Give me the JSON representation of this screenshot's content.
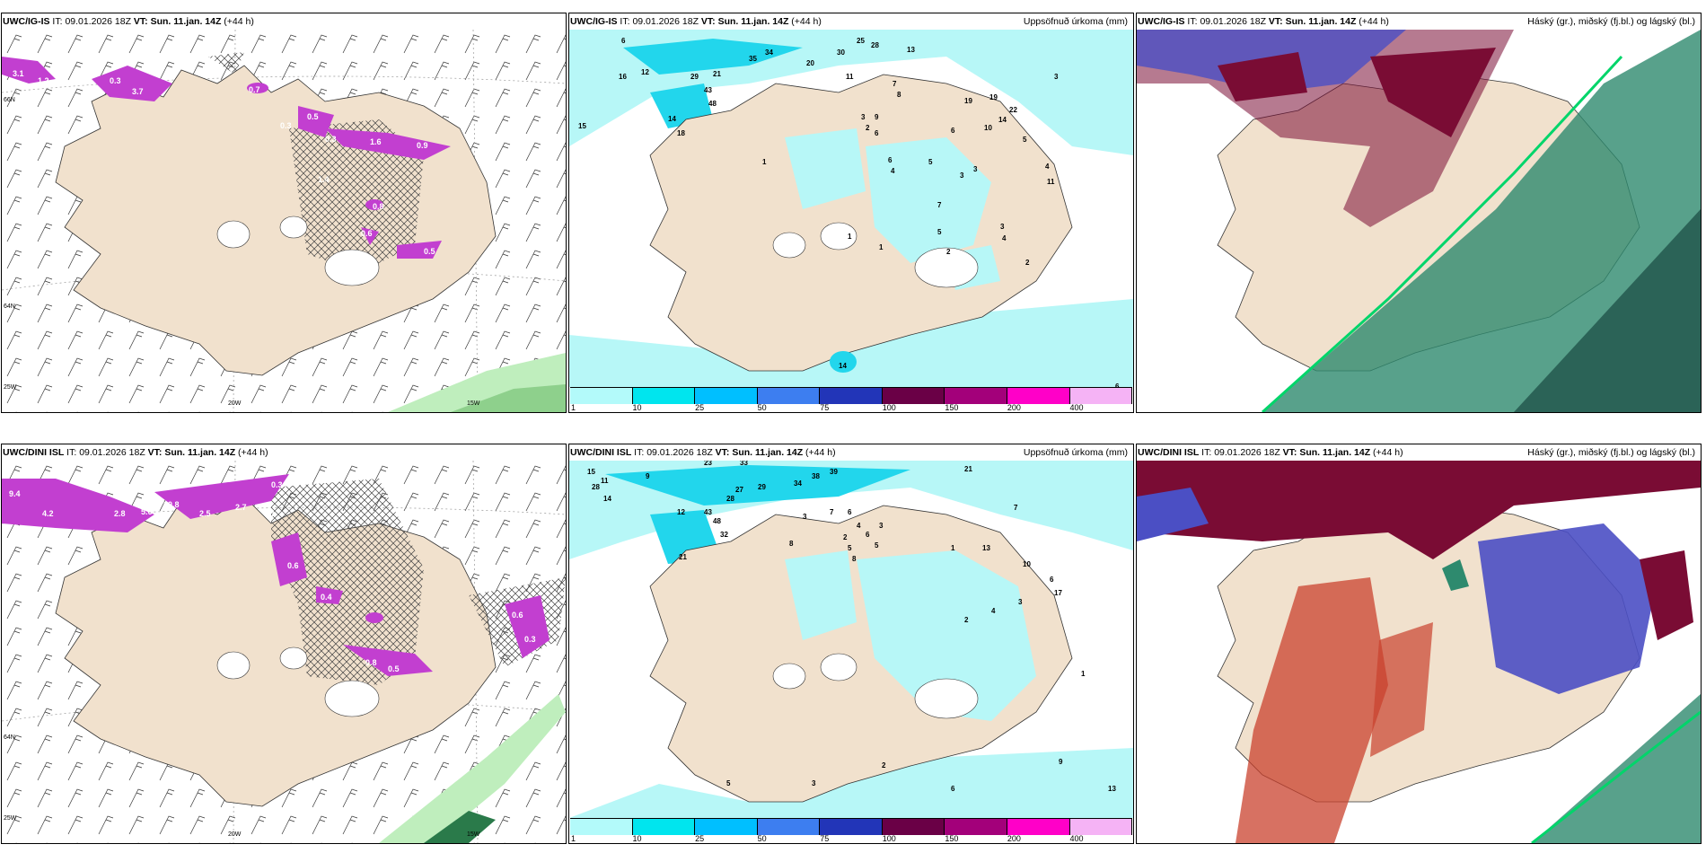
{
  "panels": [
    {
      "model": "UWC/IG-IS",
      "it_label": "IT:",
      "it": "09.01.2026 18Z",
      "vt_label": "VT:",
      "vt": "Sun. 11.jan. 14Z",
      "lead": "(+44 h)",
      "title": ""
    },
    {
      "model": "UWC/IG-IS",
      "it_label": "IT:",
      "it": "09.01.2026 18Z",
      "vt_label": "VT:",
      "vt": "Sun. 11.jan. 14Z",
      "lead": "(+44 h)",
      "title": "Uppsöfnuð úrkoma (mm)"
    },
    {
      "model": "UWC/IG-IS",
      "it_label": "IT:",
      "it": "09.01.2026 18Z",
      "vt_label": "VT:",
      "vt": "Sun. 11.jan. 14Z",
      "lead": "(+44 h)",
      "title": "Háský (gr.), miðský (fj.bl.) og lágský (bl.)"
    },
    {
      "model": "UWC/DINI ISL",
      "it_label": "IT:",
      "it": "09.01.2026 18Z",
      "vt_label": "VT:",
      "vt": "Sun. 11.jan. 14Z",
      "lead": "(+44 h)",
      "title": ""
    },
    {
      "model": "UWC/DINI ISL",
      "it_label": "IT:",
      "it": "09.01.2026 18Z",
      "vt_label": "VT:",
      "vt": "Sun. 11.jan. 14Z",
      "lead": "(+44 h)",
      "title": "Uppsöfnuð úrkoma (mm)"
    },
    {
      "model": "UWC/DINI ISL",
      "it_label": "IT:",
      "it": "09.01.2026 18Z",
      "vt_label": "VT:",
      "vt": "Sun. 11.jan. 14Z",
      "lead": "(+44 h)",
      "title": "Háský (gr.), miðský (fj.bl.) og lágský (bl.)"
    }
  ],
  "coords": {
    "lon_20": "20W",
    "lon_15": "15W",
    "lon_25": "25W",
    "lat_66": "66N",
    "lat_64": "64N",
    "lat_65": "65N"
  },
  "colorbar": {
    "labels": [
      "1",
      "10",
      "25",
      "50",
      "75",
      "100",
      "150",
      "200",
      "400"
    ],
    "colors": [
      "#b3fafa",
      "#00e5ee",
      "#00bfff",
      "#3d7ef0",
      "#2235b8",
      "#6a0046",
      "#a3007a",
      "#ff00c8",
      "#f5b3f5"
    ]
  },
  "colors": {
    "land": "#f1e1cd",
    "precip_light": "#b7f7f7",
    "precip_mid": "#22d6ec",
    "snow": "#c23fd0",
    "sea_green": "#2fa88a",
    "high_cloud": "#2e8a6e",
    "mid_cloud": "#4b4fc4",
    "low_cloud": "#7a0c34"
  },
  "wind_labels_top": [
    "3.1",
    "1.2",
    "3.7",
    "0.7",
    "0.3",
    "0.3",
    "1.6",
    "0.9",
    "0.5",
    "1.4",
    "0.8",
    "0.6",
    "0.5",
    "0.3"
  ],
  "wind_labels_bottom": [
    "9.4",
    "4.2",
    "2.8",
    "5.6",
    "10.8",
    "2.5",
    "2.7",
    "1.1",
    "0.3",
    "0.6",
    "0.4",
    "0.8",
    "0.5",
    "0.3",
    "0.6"
  ],
  "precip_labels_top": [
    "6",
    "16",
    "12",
    "25",
    "34",
    "35",
    "20",
    "30",
    "28",
    "13",
    "11",
    "15",
    "3",
    "18",
    "14",
    "43",
    "48",
    "29",
    "21",
    "7",
    "8",
    "19",
    "19",
    "10",
    "22",
    "14",
    "2",
    "3",
    "6",
    "5",
    "4",
    "3",
    "11",
    "5",
    "1",
    "6",
    "7",
    "4",
    "1",
    "2",
    "3",
    "4",
    "2",
    "6",
    "14",
    "1",
    "6",
    "6",
    "9",
    "5",
    "3"
  ],
  "precip_labels_bottom": [
    "15",
    "23",
    "33",
    "39",
    "28",
    "11",
    "9",
    "14",
    "38",
    "34",
    "29",
    "27",
    "21",
    "12",
    "43",
    "48",
    "28",
    "32",
    "21",
    "3",
    "7",
    "6",
    "4",
    "6",
    "2",
    "5",
    "8",
    "3",
    "5",
    "1",
    "13",
    "10",
    "17",
    "6",
    "3",
    "4",
    "2",
    "8",
    "7",
    "1",
    "6",
    "9",
    "13",
    "5",
    "3",
    "2"
  ]
}
